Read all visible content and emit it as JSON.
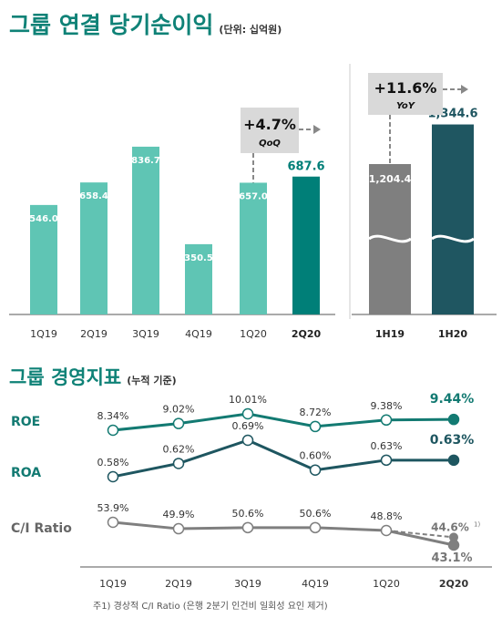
{
  "header": {
    "title": "그룹 연결 당기순이익",
    "unit": "(단위: 십억원)"
  },
  "chart_data": [
    {
      "type": "bar",
      "categories": [
        "1Q19",
        "2Q19",
        "3Q19",
        "4Q19",
        "1Q20",
        "2Q20"
      ],
      "values": [
        546.0,
        658.4,
        836.7,
        350.5,
        657.0,
        687.6
      ],
      "value_labels": [
        "546.0",
        "658.4",
        "836.7",
        "350.5",
        "657.0",
        "687.6"
      ],
      "highlight": "2Q20",
      "annotation": {
        "value": "+4.7%",
        "label": "QoQ"
      },
      "colors": {
        "bar": "#5fc5b4",
        "highlight": "#007f78"
      }
    },
    {
      "type": "bar",
      "categories": [
        "1H19",
        "1H20"
      ],
      "values": [
        1204.4,
        1344.6
      ],
      "value_labels": [
        "1,204.4",
        "1,344.6"
      ],
      "axis_break": true,
      "annotation": {
        "value": "+11.6%",
        "label": "YoY"
      },
      "colors": {
        "bar": "#7f7f7f",
        "highlight": "#1f5661"
      }
    },
    {
      "type": "line",
      "title": "그룹 경영지표",
      "subtitle": "(누적 기준)",
      "categories": [
        "1Q19",
        "2Q19",
        "3Q19",
        "4Q19",
        "1Q20",
        "2Q20"
      ],
      "series": [
        {
          "name": "ROE",
          "values": [
            8.34,
            9.02,
            10.01,
            8.72,
            9.38,
            9.44
          ],
          "labels": [
            "8.34%",
            "9.02%",
            "10.01%",
            "8.72%",
            "9.38%",
            "9.44%"
          ],
          "color": "#137a72"
        },
        {
          "name": "ROA",
          "values": [
            0.58,
            0.62,
            0.69,
            0.6,
            0.63,
            0.63
          ],
          "labels": [
            "0.58%",
            "0.62%",
            "0.69%",
            "0.60%",
            "0.63%",
            "0.63%"
          ],
          "color": "#1e5660"
        },
        {
          "name": "C/I Ratio",
          "values": [
            53.9,
            49.9,
            50.6,
            50.6,
            48.8,
            43.1
          ],
          "labels": [
            "53.9%",
            "49.9%",
            "50.6%",
            "50.6%",
            "48.8%",
            "43.1%"
          ],
          "color": "#7f7f7f",
          "adjusted": {
            "category": "2Q20",
            "value": 44.6,
            "label": "44.6%",
            "footnote_mark": "1)"
          }
        }
      ]
    }
  ],
  "footnote": "주1) 경상적 C/I Ratio (은행 2분기 인건비 일회성 요인 제거)"
}
